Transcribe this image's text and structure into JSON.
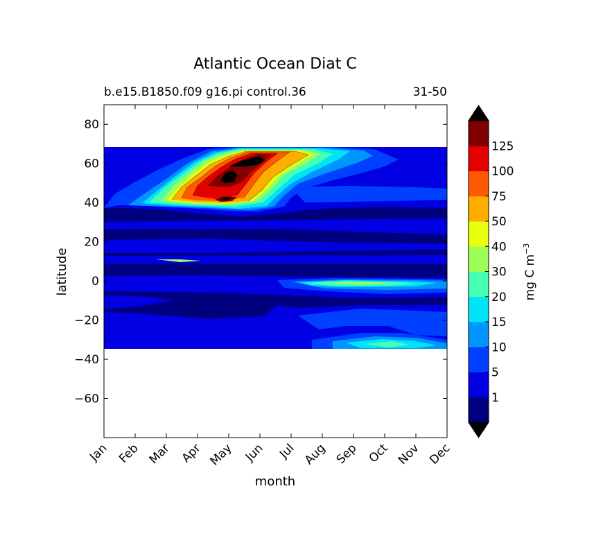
{
  "chart_data": {
    "type": "heatmap",
    "subtype": "filled-contour",
    "title": "Atlantic Ocean Diat C",
    "subtitle_left": "b.e15.B1850.f09 g16.pi control.36",
    "subtitle_right": "31-50",
    "xlabel": "month",
    "ylabel": "latitude",
    "xcategories": [
      "Jan",
      "Feb",
      "Mar",
      "Apr",
      "May",
      "Jun",
      "Jul",
      "Aug",
      "Sep",
      "Oct",
      "Nov",
      "Dec"
    ],
    "xlim": [
      0,
      11
    ],
    "ylim": [
      -80,
      90
    ],
    "yticks": [
      80,
      60,
      40,
      20,
      0,
      -20,
      -40,
      -60
    ],
    "data_extent_lat": [
      -34,
      69
    ],
    "colorbar": {
      "label": "mg C m",
      "label_superscript": "−3",
      "extend": "both",
      "tick_labels": [
        "1",
        "5",
        "10",
        "15",
        "20",
        "30",
        "40",
        "50",
        "75",
        "100",
        "125"
      ],
      "colors": [
        "#00007f",
        "#0000e3",
        "#0040ff",
        "#0096ff",
        "#00e4f8",
        "#46ffb1",
        "#a0ff56",
        "#e8ff0e",
        "#ffae00",
        "#ff5a00",
        "#e20000",
        "#7f0000"
      ],
      "under_color": "#000000",
      "over_color": "#000000"
    },
    "fields": [
      {
        "region": "north-atlantic-bloom",
        "peak_month": "Jun",
        "peak_lat": 60,
        "peak_value": ">125"
      },
      {
        "region": "equatorial-band",
        "peak_month": "Sep",
        "peak_lat": -1,
        "peak_value": "30-40"
      },
      {
        "region": "south-atlantic-edge",
        "peak_month": "Oct",
        "peak_lat": -33,
        "peak_value": "20-30"
      }
    ]
  }
}
